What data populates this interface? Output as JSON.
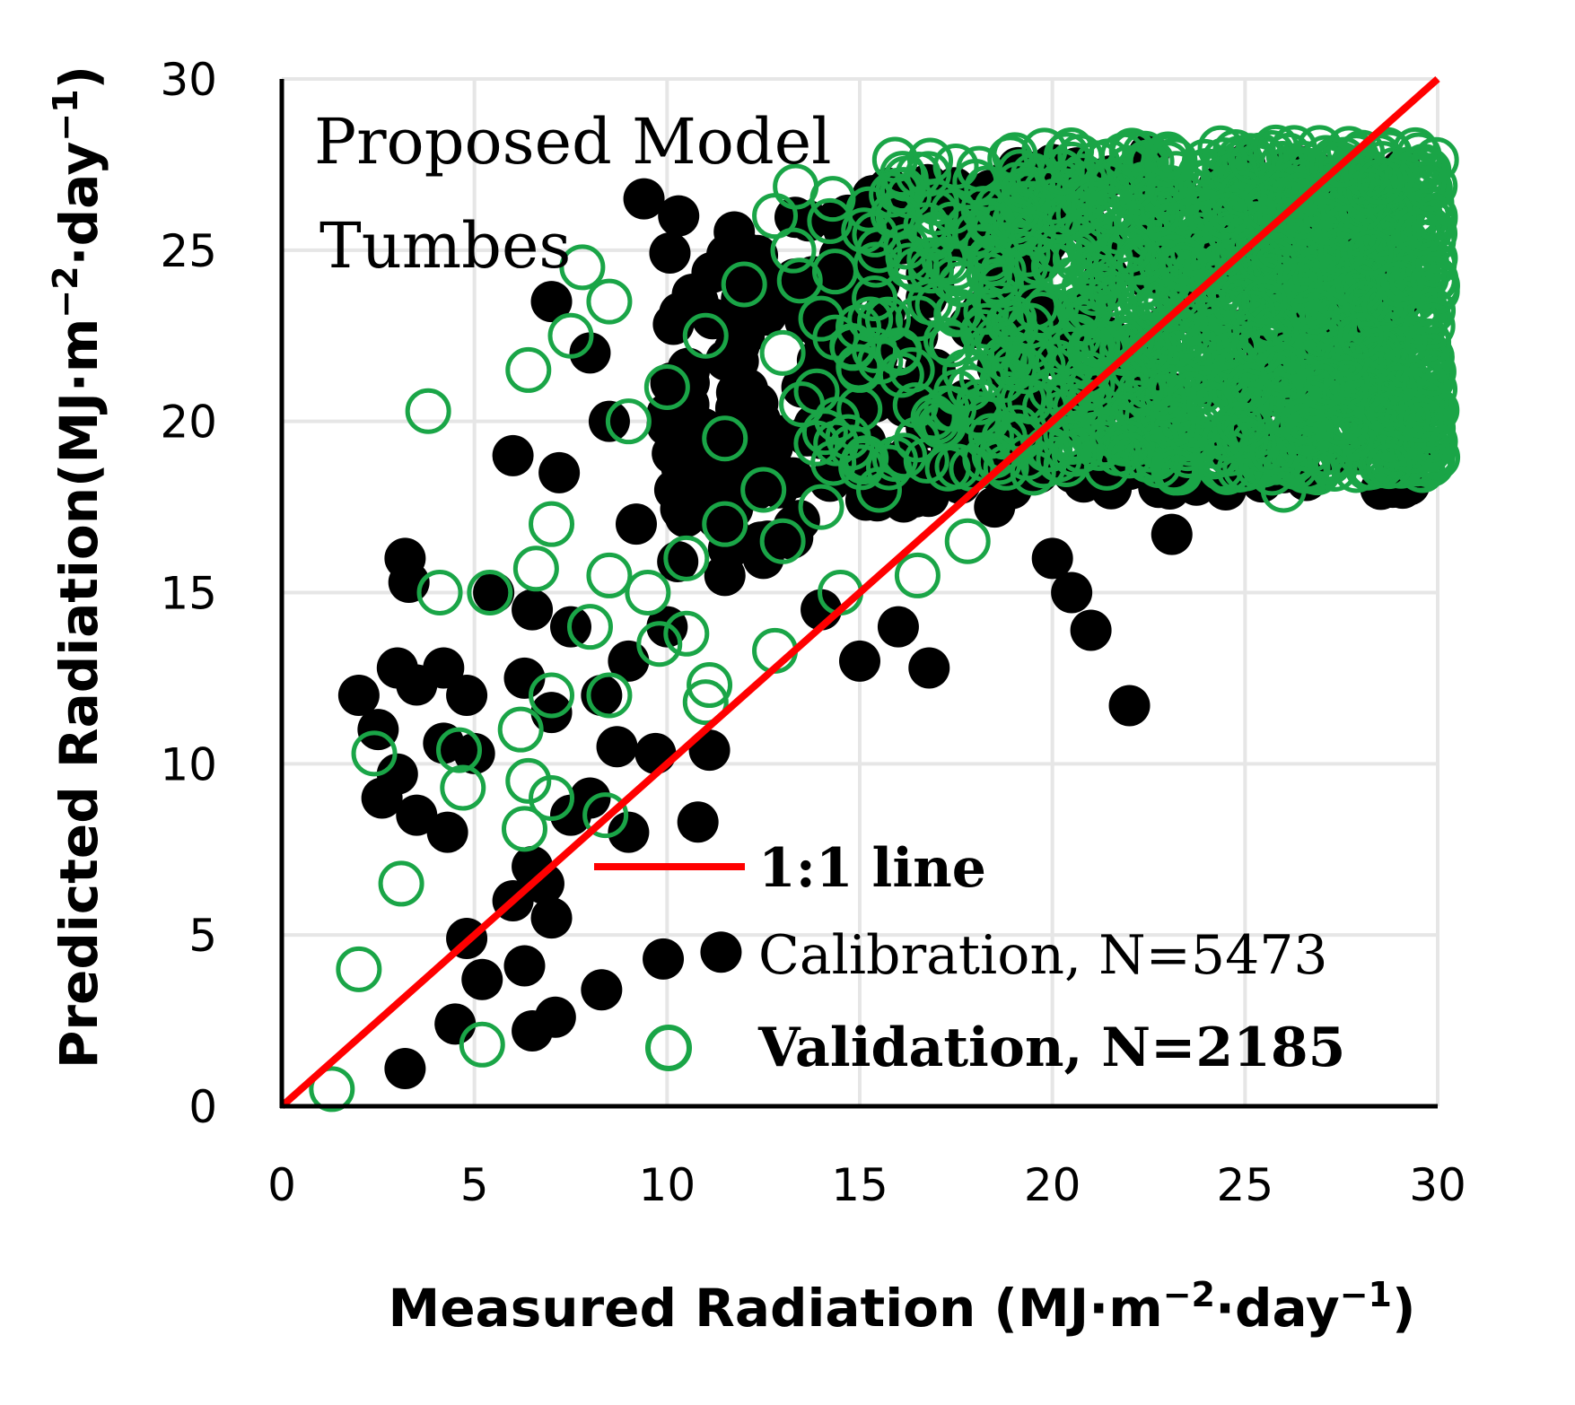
{
  "chart_data": {
    "type": "scatter",
    "title": "",
    "annotation": {
      "line1": "Proposed Model",
      "line2": "Tumbes"
    },
    "xlabel": "Measured Radiation (MJ·m",
    "xlabel_sup1": "−2",
    "xlabel_mid": "·day",
    "xlabel_sup2": "−1",
    "xlabel_end": ")",
    "ylabel": "Predicted Radiation(MJ·m",
    "ylabel_sup1": "−2",
    "ylabel_mid": "·day",
    "ylabel_sup2": "−1",
    "ylabel_end": ")",
    "xlim": [
      0,
      30
    ],
    "ylim": [
      0,
      30
    ],
    "xticks": [
      0,
      5,
      10,
      15,
      20,
      25,
      30
    ],
    "yticks": [
      0,
      5,
      10,
      15,
      20,
      25,
      30
    ],
    "grid": true,
    "legend_position": "bottom-right",
    "series": [
      {
        "name": "1:1 line",
        "kind": "line",
        "color": "#ff0000",
        "points": [
          [
            0,
            0
          ],
          [
            30,
            30
          ]
        ]
      },
      {
        "name": "Calibration, N=5473",
        "kind": "filled-circle",
        "color": "#000000",
        "points": [
          [
            9.4,
            26.5
          ],
          [
            10.3,
            26.0
          ],
          [
            10.8,
            23.5
          ],
          [
            7.0,
            23.5
          ],
          [
            8.0,
            22.0
          ],
          [
            12.0,
            22.5
          ],
          [
            6.0,
            19.0
          ],
          [
            7.2,
            18.5
          ],
          [
            8.5,
            20.0
          ],
          [
            9.2,
            17.0
          ],
          [
            10.2,
            18.0
          ],
          [
            11.5,
            19.5
          ],
          [
            3.2,
            16.0
          ],
          [
            3.3,
            15.3
          ],
          [
            5.5,
            15.0
          ],
          [
            6.5,
            14.5
          ],
          [
            7.5,
            14.0
          ],
          [
            9.0,
            13.0
          ],
          [
            10.0,
            14.0
          ],
          [
            11.5,
            15.5
          ],
          [
            12.5,
            16.0
          ],
          [
            14.0,
            14.5
          ],
          [
            15.0,
            13.0
          ],
          [
            16.0,
            14.0
          ],
          [
            16.8,
            12.8
          ],
          [
            18.5,
            17.5
          ],
          [
            20.0,
            16.0
          ],
          [
            20.5,
            15.0
          ],
          [
            21.0,
            13.9
          ],
          [
            22.0,
            11.7
          ],
          [
            23.1,
            16.7
          ],
          [
            24.5,
            18.0
          ],
          [
            26.0,
            18.5
          ],
          [
            27.5,
            19.0
          ],
          [
            28.5,
            20.0
          ],
          [
            28.8,
            21.5
          ],
          [
            2.0,
            12.0
          ],
          [
            2.5,
            11.0
          ],
          [
            3.0,
            12.8
          ],
          [
            3.5,
            12.3
          ],
          [
            4.2,
            12.8
          ],
          [
            4.8,
            12.0
          ],
          [
            4.2,
            10.6
          ],
          [
            5.0,
            10.3
          ],
          [
            2.6,
            9.0
          ],
          [
            3.0,
            9.7
          ],
          [
            3.5,
            8.5
          ],
          [
            4.3,
            8.0
          ],
          [
            6.3,
            12.5
          ],
          [
            7.0,
            11.5
          ],
          [
            8.3,
            12.0
          ],
          [
            8.7,
            10.5
          ],
          [
            9.7,
            10.3
          ],
          [
            8.0,
            9.0
          ],
          [
            9.0,
            8.0
          ],
          [
            7.5,
            8.5
          ],
          [
            11.1,
            10.4
          ],
          [
            10.8,
            8.3
          ],
          [
            6.5,
            7.0
          ],
          [
            6.8,
            6.5
          ],
          [
            6.0,
            6.0
          ],
          [
            7.0,
            5.5
          ],
          [
            4.8,
            4.9
          ],
          [
            5.2,
            3.7
          ],
          [
            6.3,
            4.1
          ],
          [
            4.5,
            2.4
          ],
          [
            6.5,
            2.2
          ],
          [
            7.1,
            2.6
          ],
          [
            8.3,
            3.4
          ],
          [
            9.9,
            4.3
          ],
          [
            11.4,
            4.5
          ],
          [
            3.2,
            1.1
          ],
          [
            17.0,
            26.5
          ],
          [
            18.0,
            25.0
          ],
          [
            20.0,
            27.5
          ],
          [
            22.5,
            27.8
          ],
          [
            25.0,
            27.5
          ],
          [
            27.0,
            27.2
          ],
          [
            19.0,
            20.0
          ],
          [
            21.5,
            19.0
          ],
          [
            23.0,
            20.5
          ],
          [
            25.5,
            21.0
          ],
          [
            27.0,
            22.0
          ],
          [
            28.0,
            23.5
          ],
          [
            24.0,
            19.5
          ],
          [
            26.5,
            19.5
          ],
          [
            13.5,
            21.0
          ],
          [
            14.0,
            19.5
          ],
          [
            15.5,
            24.0
          ],
          [
            16.5,
            22.5
          ]
        ]
      },
      {
        "name": "Validation, N=2185",
        "kind": "open-circle",
        "color": "#1aa547",
        "points": [
          [
            1.3,
            0.5
          ],
          [
            5.2,
            1.8
          ],
          [
            2.0,
            4.0
          ],
          [
            3.1,
            6.5
          ],
          [
            2.4,
            10.3
          ],
          [
            4.7,
            9.3
          ],
          [
            4.6,
            10.4
          ],
          [
            6.3,
            8.1
          ],
          [
            6.4,
            9.5
          ],
          [
            7.0,
            9.0
          ],
          [
            6.2,
            11.0
          ],
          [
            7.0,
            12.0
          ],
          [
            8.4,
            8.5
          ],
          [
            8.5,
            12.0
          ],
          [
            3.8,
            20.3
          ],
          [
            6.4,
            21.5
          ],
          [
            7.5,
            22.5
          ],
          [
            7.8,
            24.5
          ],
          [
            8.5,
            23.5
          ],
          [
            4.1,
            15.0
          ],
          [
            5.4,
            15.0
          ],
          [
            6.6,
            15.7
          ],
          [
            7.0,
            17.0
          ],
          [
            8.0,
            14.0
          ],
          [
            8.5,
            15.5
          ],
          [
            9.5,
            15.0
          ],
          [
            9.8,
            13.5
          ],
          [
            10.5,
            13.8
          ],
          [
            11.1,
            12.3
          ],
          [
            11.0,
            11.8
          ],
          [
            12.8,
            13.3
          ],
          [
            14.5,
            15.0
          ],
          [
            16.5,
            15.5
          ],
          [
            17.8,
            16.5
          ],
          [
            10.5,
            16.0
          ],
          [
            11.5,
            17.0
          ],
          [
            12.5,
            18.0
          ],
          [
            13.0,
            16.5
          ],
          [
            14.0,
            17.5
          ],
          [
            15.5,
            18.0
          ],
          [
            9.0,
            20.0
          ],
          [
            10.0,
            21.0
          ],
          [
            11.0,
            22.5
          ],
          [
            12.0,
            24.0
          ],
          [
            12.8,
            26.0
          ],
          [
            14.3,
            26.5
          ],
          [
            15.5,
            25.0
          ],
          [
            11.5,
            19.5
          ],
          [
            13.5,
            20.5
          ],
          [
            16.0,
            22.0
          ],
          [
            17.0,
            20.0
          ],
          [
            18.5,
            19.0
          ],
          [
            19.5,
            18.5
          ],
          [
            20.5,
            19.5
          ],
          [
            22.0,
            19.0
          ],
          [
            23.2,
            18.5
          ],
          [
            24.5,
            19.5
          ],
          [
            26.0,
            18.0
          ],
          [
            26.5,
            20.0
          ],
          [
            27.0,
            21.0
          ],
          [
            28.0,
            22.5
          ],
          [
            29.0,
            24.0
          ],
          [
            29.5,
            25.5
          ],
          [
            29.8,
            26.8
          ],
          [
            27.5,
            27.5
          ],
          [
            25.8,
            28.0
          ],
          [
            23.0,
            27.8
          ],
          [
            20.5,
            27.5
          ],
          [
            18.0,
            27.0
          ],
          [
            16.0,
            26.0
          ],
          [
            17.5,
            24.5
          ],
          [
            19.0,
            23.0
          ],
          [
            21.0,
            22.0
          ],
          [
            23.5,
            22.5
          ],
          [
            25.5,
            23.5
          ],
          [
            27.5,
            25.0
          ],
          [
            22.0,
            25.0
          ],
          [
            24.5,
            26.0
          ],
          [
            19.5,
            25.5
          ],
          [
            26.5,
            26.0
          ],
          [
            28.5,
            27.0
          ],
          [
            14.0,
            23.0
          ],
          [
            15.0,
            21.5
          ],
          [
            13.0,
            22.0
          ]
        ]
      }
    ],
    "dense_cluster": {
      "series": "Validation, N=2185",
      "x_range": [
        13,
        30
      ],
      "y_range": [
        18.5,
        28
      ],
      "approx_points": 1100
    }
  },
  "legend": [
    {
      "label": "1:1 line",
      "marker": "line",
      "color": "#ff0000"
    },
    {
      "label": "Calibration, N=5473",
      "marker": "filled-circle",
      "color": "#000000"
    },
    {
      "label": "Validation, N=2185",
      "marker": "open-circle",
      "color": "#1aa547"
    }
  ]
}
